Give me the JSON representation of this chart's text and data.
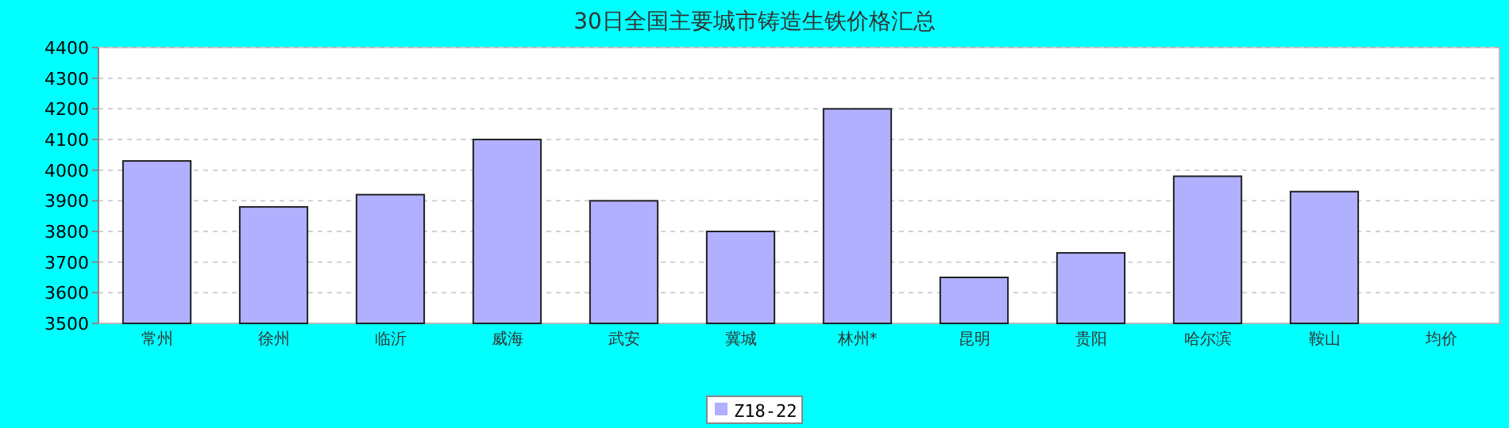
{
  "chart_data": {
    "type": "bar",
    "title": "30日全国主要城市铸造生铁价格汇总",
    "categories": [
      "常州",
      "徐州",
      "临沂",
      "威海",
      "武安",
      "冀城",
      "林州*",
      "昆明",
      "贵阳",
      "哈尔滨",
      "鞍山",
      "均价"
    ],
    "series": [
      {
        "name": "Z18-22",
        "color": "#b0b0ff",
        "values": [
          4030,
          3880,
          3920,
          4100,
          3900,
          3800,
          4200,
          3650,
          3730,
          3980,
          3930,
          null
        ]
      }
    ],
    "ylim": [
      3500,
      4400
    ],
    "yticks": [
      3500,
      3600,
      3700,
      3800,
      3900,
      4000,
      4100,
      4200,
      4300,
      4400
    ],
    "grid": "y",
    "legend": "bottom"
  }
}
